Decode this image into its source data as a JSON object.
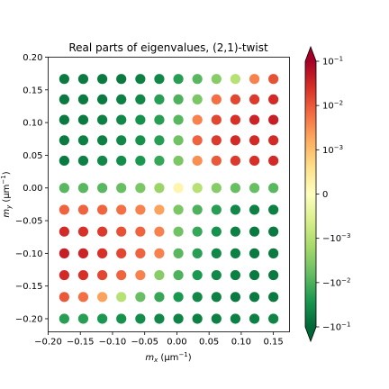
{
  "chart_data": {
    "type": "scatter",
    "title": "Real parts of eigenvalues, (2,1)-twist",
    "xlabel": "m_x (μm⁻¹)",
    "ylabel": "m_y (μm⁻¹)",
    "xlabel_parts": {
      "var": "m",
      "sub": "x",
      "unit": "(μm",
      "exp": "−1",
      "close": ")"
    },
    "ylabel_parts": {
      "var": "m",
      "sub": "y",
      "unit": "(μm",
      "exp": "−1",
      "close": ")"
    },
    "xlim": [
      -0.2,
      0.175
    ],
    "ylim": [
      -0.22,
      0.2
    ],
    "xticks": [
      -0.2,
      -0.15,
      -0.1,
      -0.05,
      0.0,
      0.05,
      0.1,
      0.15
    ],
    "xtick_labels": [
      "−0.20",
      "−0.15",
      "−0.10",
      "−0.05",
      "0.00",
      "0.05",
      "0.10",
      "0.15"
    ],
    "yticks": [
      -0.2,
      -0.15,
      -0.1,
      -0.05,
      0.0,
      0.05,
      0.1,
      0.15,
      0.2
    ],
    "ytick_labels": [
      "−0.20",
      "−0.15",
      "−0.10",
      "−0.05",
      "0.00",
      "0.05",
      "0.10",
      "0.15",
      "0.20"
    ],
    "x_values": [
      -0.175,
      -0.1455,
      -0.1159,
      -0.0864,
      -0.0568,
      -0.0273,
      0.0023,
      0.0318,
      0.0614,
      0.0909,
      0.1205,
      0.15
    ],
    "y_values": [
      0.1667,
      0.1354,
      0.1042,
      0.0729,
      0.0417,
      0.0,
      -0.0333,
      -0.0667,
      -0.1,
      -0.1333,
      -0.1667,
      -0.2
    ],
    "scale": "symlog",
    "colormap": "RdYlGn_r",
    "colorbar": {
      "range": [
        -0.1,
        0.1
      ],
      "linthresh": 0.001,
      "extend": "both",
      "ticks": [
        {
          "label_base": "10",
          "label_exp": "−1",
          "value": 0.1
        },
        {
          "label_base": "10",
          "label_exp": "−2",
          "value": 0.01
        },
        {
          "label_base": "10",
          "label_exp": "−3",
          "value": 0.001
        },
        {
          "label_base": "0",
          "label_exp": "",
          "value": 0
        },
        {
          "label_base": "−10",
          "label_exp": "−3",
          "value": -0.001
        },
        {
          "label_base": "−10",
          "label_exp": "−2",
          "value": -0.01
        },
        {
          "label_base": "−10",
          "label_exp": "−1",
          "value": -0.1
        }
      ]
    },
    "grid_values": [
      [
        -0.06,
        -0.06,
        -0.06,
        -0.06,
        -0.05,
        -0.04,
        -0.02,
        -0.008,
        -0.003,
        -0.001,
        0.004,
        0.012
      ],
      [
        -0.06,
        -0.06,
        -0.06,
        -0.05,
        -0.04,
        -0.02,
        -0.01,
        -0.004,
        0.006,
        0.015,
        0.02,
        0.03
      ],
      [
        -0.06,
        -0.06,
        -0.05,
        -0.04,
        -0.03,
        -0.02,
        -0.008,
        0.004,
        0.015,
        0.025,
        0.035,
        0.04
      ],
      [
        -0.06,
        -0.05,
        -0.05,
        -0.04,
        -0.03,
        -0.02,
        -0.005,
        0.008,
        0.02,
        0.03,
        0.03,
        0.03
      ],
      [
        -0.06,
        -0.05,
        -0.04,
        -0.035,
        -0.025,
        -0.015,
        -0.004,
        0.003,
        0.01,
        0.02,
        0.025,
        0.03
      ],
      [
        -0.008,
        -0.008,
        -0.008,
        -0.006,
        -0.004,
        -0.002,
        0.0002,
        -0.001,
        -0.003,
        -0.006,
        -0.006,
        -0.008
      ],
      [
        0.008,
        0.008,
        0.008,
        0.006,
        0.004,
        0.002,
        -0.004,
        -0.01,
        -0.02,
        -0.04,
        -0.05,
        -0.05
      ],
      [
        0.03,
        0.025,
        0.02,
        0.012,
        0.008,
        0.004,
        -0.005,
        -0.015,
        -0.03,
        -0.05,
        -0.06,
        -0.06
      ],
      [
        0.04,
        0.035,
        0.025,
        0.015,
        0.008,
        0.004,
        -0.008,
        -0.02,
        -0.04,
        -0.05,
        -0.06,
        -0.06
      ],
      [
        0.03,
        0.025,
        0.015,
        0.008,
        0.004,
        -0.003,
        -0.01,
        -0.025,
        -0.04,
        -0.05,
        -0.06,
        -0.06
      ],
      [
        0.01,
        0.006,
        0.002,
        -0.001,
        -0.006,
        -0.015,
        -0.025,
        -0.04,
        -0.05,
        -0.06,
        -0.06,
        -0.06
      ],
      [
        -0.02,
        -0.02,
        -0.025,
        -0.03,
        -0.035,
        -0.04,
        -0.045,
        -0.05,
        -0.05,
        -0.05,
        -0.05,
        -0.045
      ]
    ]
  }
}
